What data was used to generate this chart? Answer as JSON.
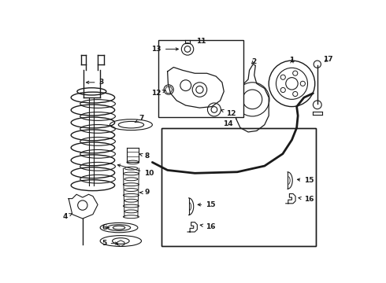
{
  "bg_color": "#ffffff",
  "line_color": "#1a1a1a",
  "fig_width": 4.9,
  "fig_height": 3.6,
  "dpi": 100,
  "fs": 6.5
}
